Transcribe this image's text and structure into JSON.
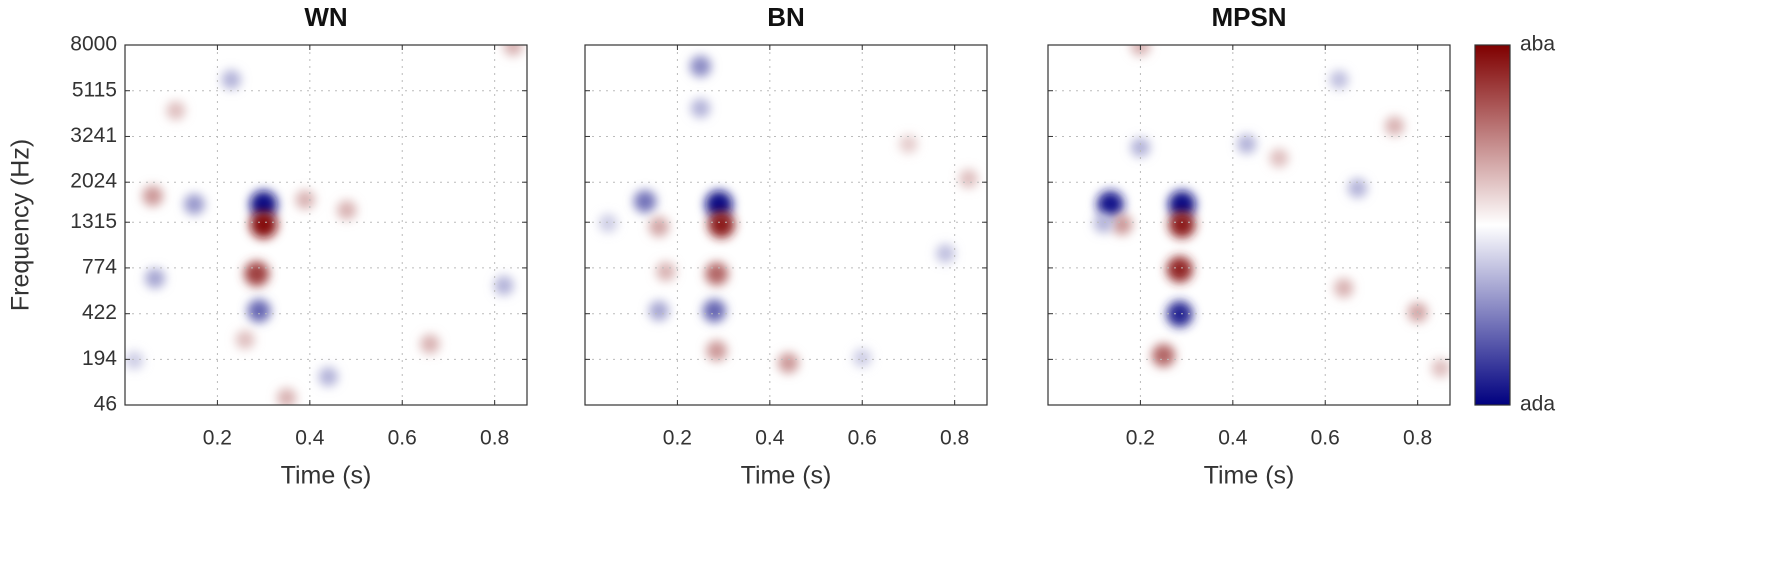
{
  "chart_data": [
    {
      "type": "heatmap",
      "title": "WN",
      "xlabel": "Time (s)",
      "ylabel": "Frequency (Hz)",
      "xlim": [
        0,
        0.87
      ],
      "ylim": [
        46,
        8000
      ],
      "yscale": "erb",
      "grid": true,
      "xticks": [
        0.2,
        0.4,
        0.6,
        0.8
      ],
      "yticks": [
        46,
        194,
        422,
        774,
        1315,
        2024,
        3241,
        5115,
        8000
      ],
      "x": [
        0.3,
        0.3,
        0.285,
        0.29,
        0.15,
        0.06,
        0.065,
        0.23,
        0.11,
        0.39,
        0.48,
        0.82,
        0.02,
        0.44,
        0.66,
        0.84,
        0.26,
        0.35
      ],
      "y": [
        1600,
        1280,
        720,
        440,
        1600,
        1750,
        680,
        5700,
        4200,
        1680,
        1500,
        620,
        190,
        130,
        260,
        7900,
        280,
        65
      ],
      "values": [
        -0.95,
        0.95,
        0.75,
        -0.6,
        -0.4,
        0.4,
        -0.35,
        -0.3,
        0.25,
        0.3,
        0.3,
        -0.3,
        -0.2,
        -0.3,
        0.3,
        0.3,
        0.25,
        0.3
      ]
    },
    {
      "type": "heatmap",
      "title": "BN",
      "xlabel": "Time (s)",
      "xlim": [
        0,
        0.87
      ],
      "ylim": [
        46,
        8000
      ],
      "yscale": "erb",
      "grid": true,
      "xticks": [
        0.2,
        0.4,
        0.6,
        0.8
      ],
      "yticks": [
        46,
        194,
        422,
        774,
        1315,
        2024,
        3241,
        5115,
        8000
      ],
      "x": [
        0.29,
        0.295,
        0.285,
        0.28,
        0.13,
        0.16,
        0.175,
        0.16,
        0.285,
        0.44,
        0.25,
        0.25,
        0.83,
        0.78,
        0.6,
        0.05,
        0.7
      ],
      "y": [
        1600,
        1280,
        720,
        440,
        1650,
        1250,
        740,
        440,
        230,
        180,
        6500,
        4300,
        2100,
        920,
        200,
        1300,
        3000
      ],
      "values": [
        -0.95,
        0.9,
        0.6,
        -0.6,
        -0.55,
        0.35,
        0.3,
        -0.35,
        0.4,
        0.4,
        -0.45,
        -0.3,
        0.25,
        -0.25,
        -0.2,
        -0.2,
        0.2
      ]
    },
    {
      "type": "heatmap",
      "title": "MPSN",
      "xlabel": "Time (s)",
      "xlim": [
        0,
        0.87
      ],
      "ylim": [
        46,
        8000
      ],
      "yscale": "erb",
      "grid": true,
      "xticks": [
        0.2,
        0.4,
        0.6,
        0.8
      ],
      "yticks": [
        46,
        194,
        422,
        774,
        1315,
        2024,
        3241,
        5115,
        8000
      ],
      "x": [
        0.135,
        0.29,
        0.29,
        0.285,
        0.285,
        0.25,
        0.16,
        0.12,
        0.2,
        0.43,
        0.67,
        0.75,
        0.8,
        0.64,
        0.85,
        0.2,
        0.63,
        0.5
      ],
      "y": [
        1600,
        1600,
        1280,
        760,
        420,
        210,
        1280,
        1300,
        2900,
        3000,
        1900,
        3600,
        430,
        600,
        160,
        7900,
        5700,
        2600
      ],
      "values": [
        -0.9,
        -0.95,
        0.9,
        0.85,
        -0.85,
        0.6,
        0.4,
        -0.3,
        -0.3,
        -0.3,
        -0.3,
        0.3,
        0.35,
        0.3,
        0.25,
        0.3,
        -0.25,
        0.25
      ],
      "colorbar": {
        "clim": [
          -1,
          1
        ],
        "colors": [
          "#00007f",
          "#ffffff",
          "#7f0000"
        ],
        "ticks": [
          {
            "value": 1,
            "label": "aba"
          },
          {
            "value": -1,
            "label": "ada"
          }
        ]
      }
    }
  ]
}
